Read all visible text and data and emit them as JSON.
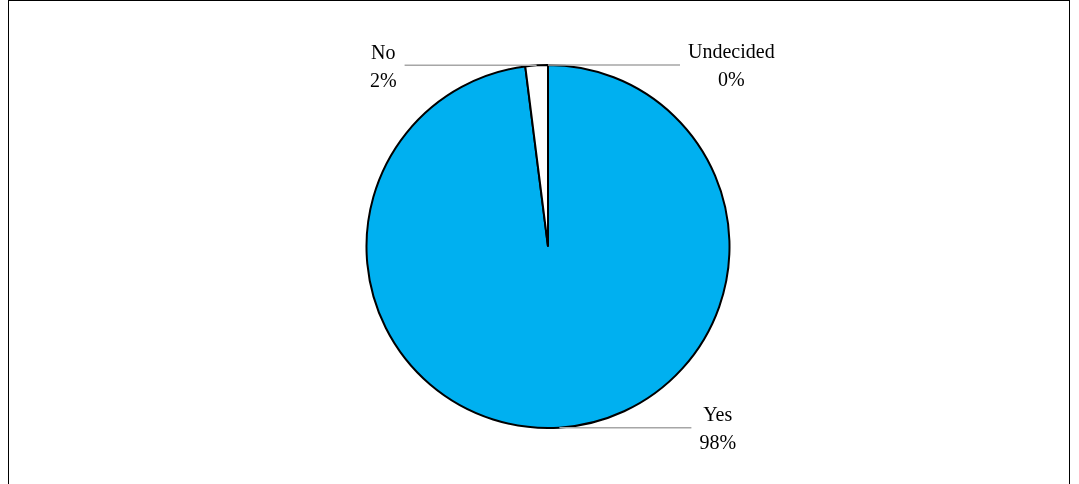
{
  "chart_data": {
    "type": "pie",
    "categories": [
      "Yes",
      "No",
      "Undecided"
    ],
    "values": [
      98,
      2,
      0
    ],
    "value_labels": [
      "98%",
      "2%",
      "0%"
    ],
    "colors": [
      "#00b0f0",
      "#ffffff",
      "#ffffff"
    ],
    "legend": false
  }
}
